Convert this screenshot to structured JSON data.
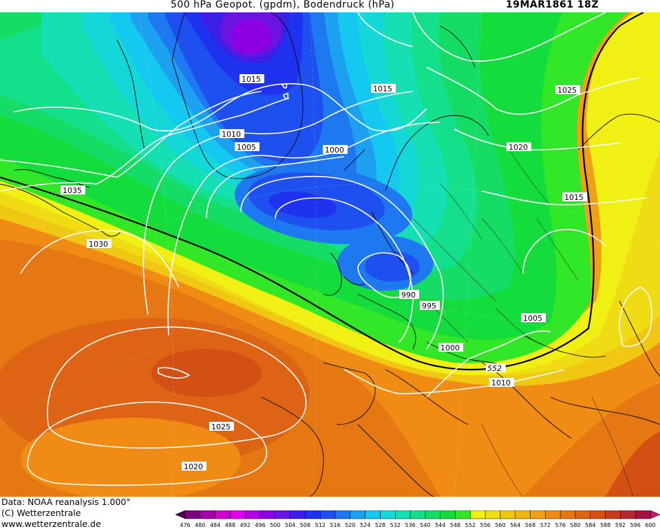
{
  "header": {
    "title": "500 hPa Geopot. (gpdm), Bodendruck (hPa)",
    "date": "19MAR1861 18Z"
  },
  "footer": {
    "data_source": "Data: NOAA reanalysis 1.000°",
    "copyright": "(C) Wetterzentrale",
    "website": "www.wetterzentrale.de"
  },
  "legend": {
    "values": [
      "476",
      "480",
      "484",
      "488",
      "492",
      "496",
      "500",
      "504",
      "508",
      "512",
      "516",
      "520",
      "524",
      "528",
      "532",
      "536",
      "540",
      "544",
      "548",
      "552",
      "556",
      "560",
      "564",
      "568",
      "572",
      "576",
      "580",
      "584",
      "588",
      "592",
      "596",
      "600"
    ],
    "colors": [
      "#4a0052",
      "#7a0080",
      "#a800a8",
      "#d000d0",
      "#e000f0",
      "#b400e6",
      "#8c00e6",
      "#6a14e0",
      "#3c1ee6",
      "#1e32f0",
      "#1e50f0",
      "#1e78f0",
      "#1ea0f0",
      "#14c8f0",
      "#14d8d8",
      "#14e0b4",
      "#14e08c",
      "#14dc64",
      "#14dc3c",
      "#32e628",
      "#f0f014",
      "#f0dc14",
      "#f0c814",
      "#f0b414",
      "#f0a014",
      "#f08c14",
      "#e67814",
      "#dc6414",
      "#d25014",
      "#c83c1e",
      "#b42832",
      "#a01446",
      "#c8146e"
    ]
  },
  "isobar_labels": [
    {
      "id": "iso-1015-greenland",
      "text": "1015"
    },
    {
      "id": "iso-1015-norway",
      "text": "1015"
    },
    {
      "id": "iso-1025-russia",
      "text": "1025"
    },
    {
      "id": "iso-1010",
      "text": "1010"
    },
    {
      "id": "iso-1005-iceland",
      "text": "1005"
    },
    {
      "id": "iso-1000-north",
      "text": "1000"
    },
    {
      "id": "iso-1020-russia",
      "text": "1020"
    },
    {
      "id": "iso-1035",
      "text": "1035"
    },
    {
      "id": "iso-1015-east",
      "text": "1015"
    },
    {
      "id": "iso-1030",
      "text": "1030"
    },
    {
      "id": "iso-990",
      "text": "990"
    },
    {
      "id": "iso-995",
      "text": "995"
    },
    {
      "id": "iso-1005-balkans",
      "text": "1005"
    },
    {
      "id": "iso-1000-south",
      "text": "1000"
    },
    {
      "id": "iso-552",
      "text": "552"
    },
    {
      "id": "iso-1010-south",
      "text": "1010"
    },
    {
      "id": "iso-1025-atlantic",
      "text": "1025"
    },
    {
      "id": "iso-1020-atlantic",
      "text": "1020"
    }
  ]
}
